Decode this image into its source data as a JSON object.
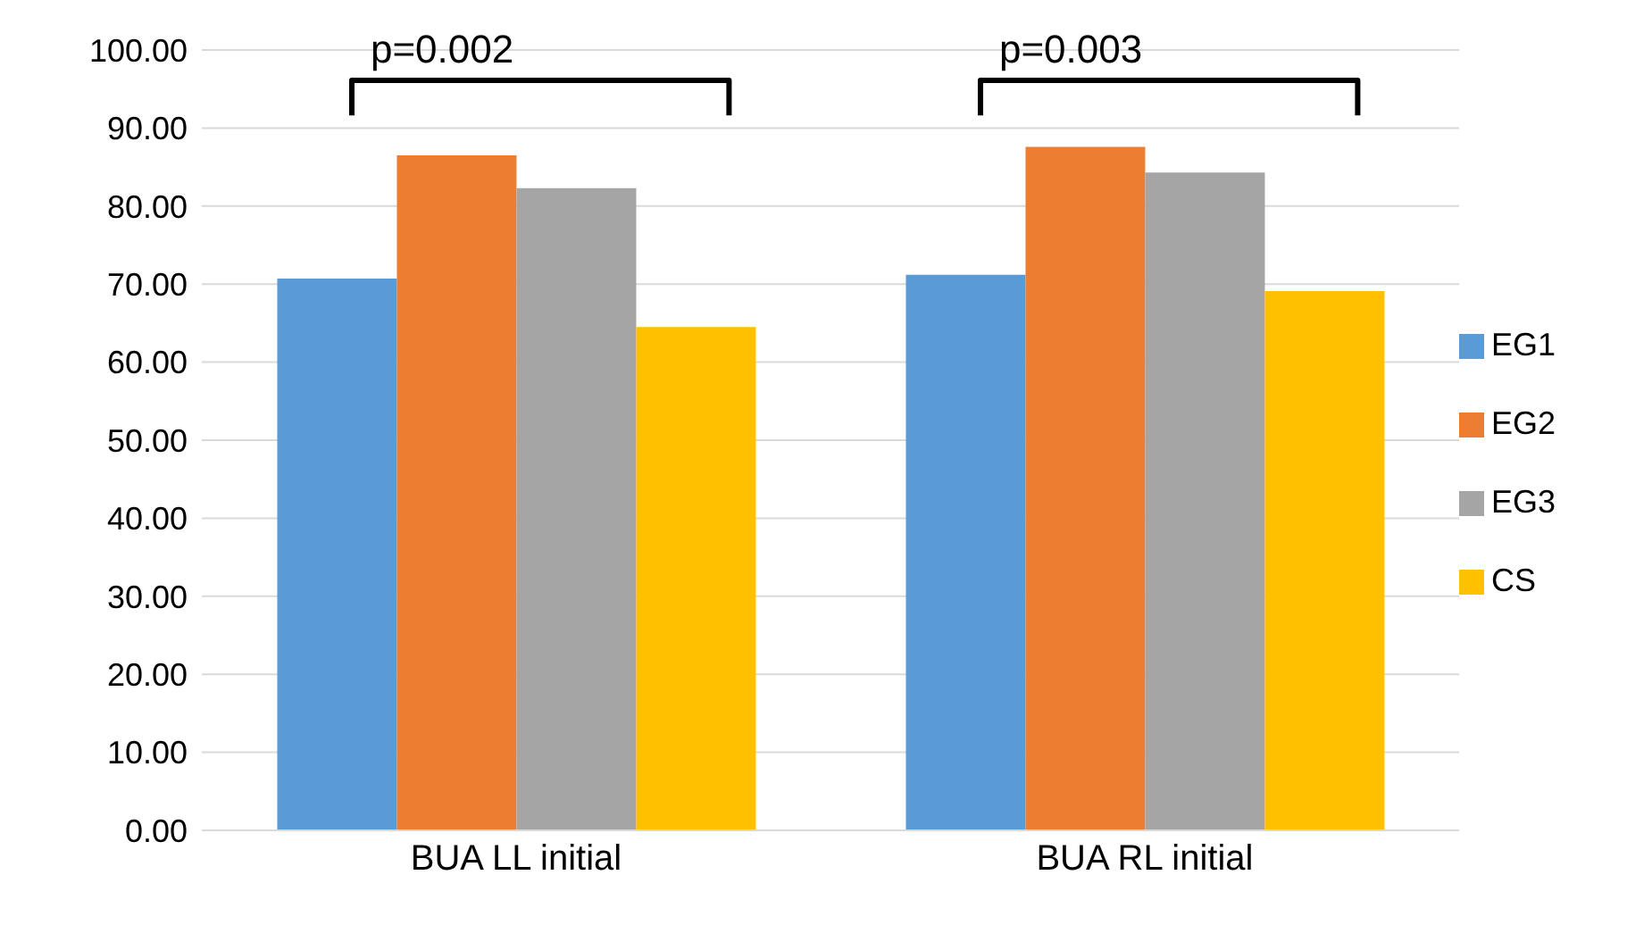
{
  "chart_data": {
    "type": "bar",
    "categories": [
      "BUA LL initial",
      "BUA RL initial"
    ],
    "series": [
      {
        "name": "EG1",
        "color": "#5b9bd5",
        "values": [
          70.7,
          71.2
        ]
      },
      {
        "name": "EG2",
        "color": "#ed7d31",
        "values": [
          86.5,
          87.6
        ]
      },
      {
        "name": "EG3",
        "color": "#a5a5a5",
        "values": [
          82.3,
          84.3
        ]
      },
      {
        "name": "CS",
        "color": "#ffc000",
        "values": [
          64.5,
          69.1
        ]
      }
    ],
    "ylim": [
      0,
      100
    ],
    "yticks": [
      {
        "value": 0,
        "label": "0.00"
      },
      {
        "value": 10,
        "label": "10.00"
      },
      {
        "value": 20,
        "label": "20.00"
      },
      {
        "value": 30,
        "label": "30.00"
      },
      {
        "value": 40,
        "label": "40.00"
      },
      {
        "value": 50,
        "label": "50.00"
      },
      {
        "value": 60,
        "label": "60.00"
      },
      {
        "value": 70,
        "label": "70.00"
      },
      {
        "value": 80,
        "label": "80.00"
      },
      {
        "value": 90,
        "label": "90.00"
      },
      {
        "value": 100,
        "label": "100.00"
      }
    ],
    "grid": "y",
    "legend": "right",
    "annotations": [
      "p=0.002",
      "p=0.003"
    ]
  }
}
